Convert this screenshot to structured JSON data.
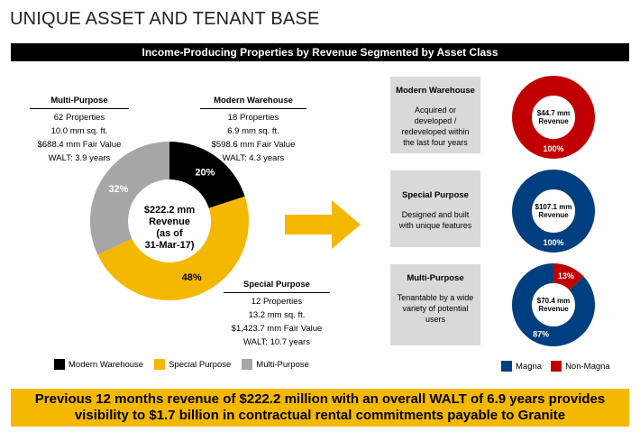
{
  "page": {
    "title": "UNIQUE ASSET AND TENANT BASE",
    "banner": "Income-Producing Properties by Revenue Segmented by Asset Class",
    "footer_line1": "Previous 12 months revenue of $222.2 million with an overall WALT of 6.9 years provides",
    "footer_line2": "visibility to $1.7 billion in contractual rental commitments payable to Granite"
  },
  "blocks": {
    "multi": {
      "head": "Multi-Purpose",
      "l1": "62 Properties",
      "l2": "10.0 mm sq. ft.",
      "l3": "$688.4 mm Fair Value",
      "l4": "WALT: 3.9 years"
    },
    "modern": {
      "head": "Modern Warehouse",
      "l1": "18 Properties",
      "l2": "6.9 mm sq. ft.",
      "l3": "$598.6 mm Fair Value",
      "l4": "WALT: 4.3 years"
    },
    "special": {
      "head": "Special Purpose",
      "l1": "12 Properties",
      "l2": "13.2 mm sq. ft.",
      "l3": "$1,423.7 mm Fair Value",
      "l4": "WALT: 10.7 years"
    }
  },
  "asset_boxes": [
    {
      "title": "Modern Warehouse",
      "desc": "Acquired or developed / redeveloped within the last four years"
    },
    {
      "title": "Special Purpose",
      "desc": "Designed and built with unique features"
    },
    {
      "title": "Multi-Purpose",
      "desc": "Tenantable by a wide variety of potential users"
    }
  ],
  "colors": {
    "modern": "#000000",
    "special": "#f5b800",
    "multi": "#a6a6a6",
    "magna": "#003f7f",
    "non_magna": "#c00000",
    "arrow": "#f5b800"
  },
  "chart_data": [
    {
      "type": "pie",
      "variant": "donut",
      "center_label": [
        "$222.2 mm",
        "Revenue",
        "(as of",
        "31-Mar-17)"
      ],
      "categories": [
        "Modern Warehouse",
        "Special Purpose",
        "Multi-Purpose"
      ],
      "values": [
        20,
        48,
        32
      ],
      "value_labels": [
        "20%",
        "48%",
        "32%"
      ],
      "legend": [
        "Modern Warehouse",
        "Special Purpose",
        "Multi-Purpose"
      ],
      "legend_position": "bottom"
    },
    {
      "type": "pie",
      "variant": "donut",
      "center_label": [
        "$44.7 mm",
        "Revenue"
      ],
      "categories": [
        "Magna",
        "Non-Magna"
      ],
      "values": [
        0,
        100
      ],
      "value_labels": [
        "",
        "100%"
      ]
    },
    {
      "type": "pie",
      "variant": "donut",
      "center_label": [
        "$107.1 mm",
        "Revenue"
      ],
      "categories": [
        "Magna",
        "Non-Magna"
      ],
      "values": [
        100,
        0
      ],
      "value_labels": [
        "100%",
        ""
      ]
    },
    {
      "type": "pie",
      "variant": "donut",
      "center_label": [
        "$70.4 mm",
        "Revenue"
      ],
      "categories": [
        "Magna",
        "Non-Magna"
      ],
      "values": [
        87,
        13
      ],
      "value_labels": [
        "87%",
        "13%"
      ],
      "legend": [
        "Magna",
        "Non-Magna"
      ],
      "legend_position": "bottom"
    }
  ]
}
